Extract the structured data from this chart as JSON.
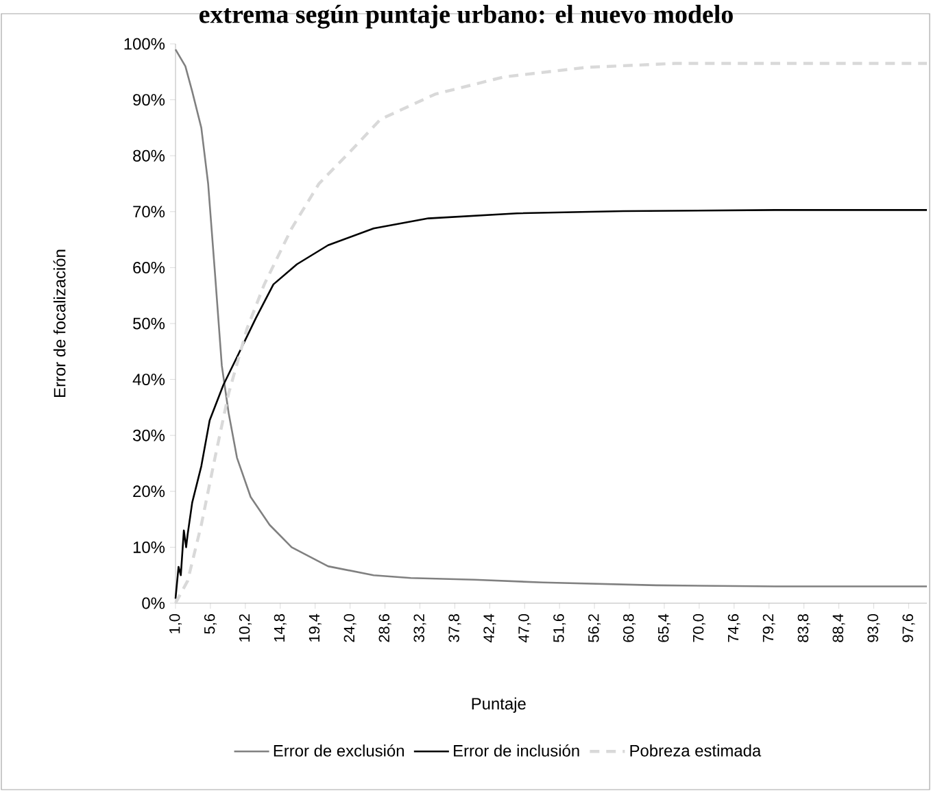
{
  "chart_data": {
    "type": "line",
    "title": "extrema según puntaje urbano: el nuevo modelo",
    "xlabel": "Puntaje",
    "ylabel": "Error de focalización",
    "xlim": [
      1.0,
      100
    ],
    "xticks": [
      {
        "value": 1.0,
        "label": "1,0"
      },
      {
        "value": 5.6,
        "label": "5,6"
      },
      {
        "value": 10.2,
        "label": "10,2"
      },
      {
        "value": 14.8,
        "label": "14,8"
      },
      {
        "value": 19.4,
        "label": "19,4"
      },
      {
        "value": 24.0,
        "label": "24,0"
      },
      {
        "value": 28.6,
        "label": "28,6"
      },
      {
        "value": 33.2,
        "label": "33,2"
      },
      {
        "value": 37.8,
        "label": "37,8"
      },
      {
        "value": 42.4,
        "label": "42,4"
      },
      {
        "value": 47.0,
        "label": "47,0"
      },
      {
        "value": 51.6,
        "label": "51,6"
      },
      {
        "value": 56.2,
        "label": "56,2"
      },
      {
        "value": 60.8,
        "label": "60,8"
      },
      {
        "value": 65.4,
        "label": "65,4"
      },
      {
        "value": 70.0,
        "label": "70,0"
      },
      {
        "value": 74.6,
        "label": "74,6"
      },
      {
        "value": 79.2,
        "label": "79,2"
      },
      {
        "value": 83.8,
        "label": "83,8"
      },
      {
        "value": 88.4,
        "label": "88,4"
      },
      {
        "value": 93.0,
        "label": "93,0"
      },
      {
        "value": 97.6,
        "label": "97,6"
      }
    ],
    "ylim": [
      0,
      100
    ],
    "yticks": [
      {
        "value": 0,
        "label": "0%"
      },
      {
        "value": 10,
        "label": "10%"
      },
      {
        "value": 20,
        "label": "20%"
      },
      {
        "value": 30,
        "label": "30%"
      },
      {
        "value": 40,
        "label": "40%"
      },
      {
        "value": 50,
        "label": "50%"
      },
      {
        "value": 60,
        "label": "60%"
      },
      {
        "value": 70,
        "label": "70%"
      },
      {
        "value": 80,
        "label": "80%"
      },
      {
        "value": 90,
        "label": "90%"
      },
      {
        "value": 100,
        "label": "100%"
      }
    ],
    "legend": "bottom",
    "grid": false,
    "series": [
      {
        "name": "Error de exclusión",
        "color": "#808080",
        "line_style": "solid",
        "x": [
          1.0,
          2.3,
          3.2,
          4.4,
          5.3,
          6.2,
          7.1,
          8.0,
          9.1,
          10.9,
          13.4,
          16.3,
          21.1,
          27.1,
          32,
          40.4,
          49.4,
          64.3,
          80,
          100
        ],
        "values": [
          99,
          96,
          91.5,
          85,
          75,
          59,
          42.5,
          34,
          26,
          19,
          14,
          10,
          6.6,
          5,
          4.5,
          4.2,
          3.7,
          3.2,
          3.0,
          3.0
        ]
      },
      {
        "name": "Error de inclusión",
        "color": "#000000",
        "line_style": "solid",
        "x": [
          1.0,
          1.4,
          1.7,
          2.1,
          2.4,
          2.6,
          3.2,
          4.4,
          5.5,
          7.3,
          9.1,
          11.6,
          13.9,
          17,
          21.1,
          27.1,
          34.3,
          46,
          60,
          80,
          100
        ],
        "values": [
          0.8,
          6.5,
          5,
          13,
          10,
          12.3,
          18,
          24.5,
          32.7,
          39,
          44,
          51,
          57,
          60.6,
          64,
          67,
          68.8,
          69.7,
          70.1,
          70.3,
          70.3
        ]
      },
      {
        "name": "Pobreza estimada",
        "color": "#d9d9d9",
        "line_style": "dashed",
        "x": [
          1.0,
          2.6,
          4.4,
          6.2,
          8.0,
          10.4,
          12.7,
          16.3,
          19.9,
          24.2,
          28,
          32,
          35.2,
          44.3,
          55.1,
          66.8,
          80,
          100
        ],
        "values": [
          0,
          4,
          14,
          26,
          37.5,
          49,
          57,
          67,
          75,
          81,
          86.5,
          89,
          91,
          94.1,
          95.8,
          96.5,
          96.5,
          96.5
        ]
      }
    ]
  }
}
